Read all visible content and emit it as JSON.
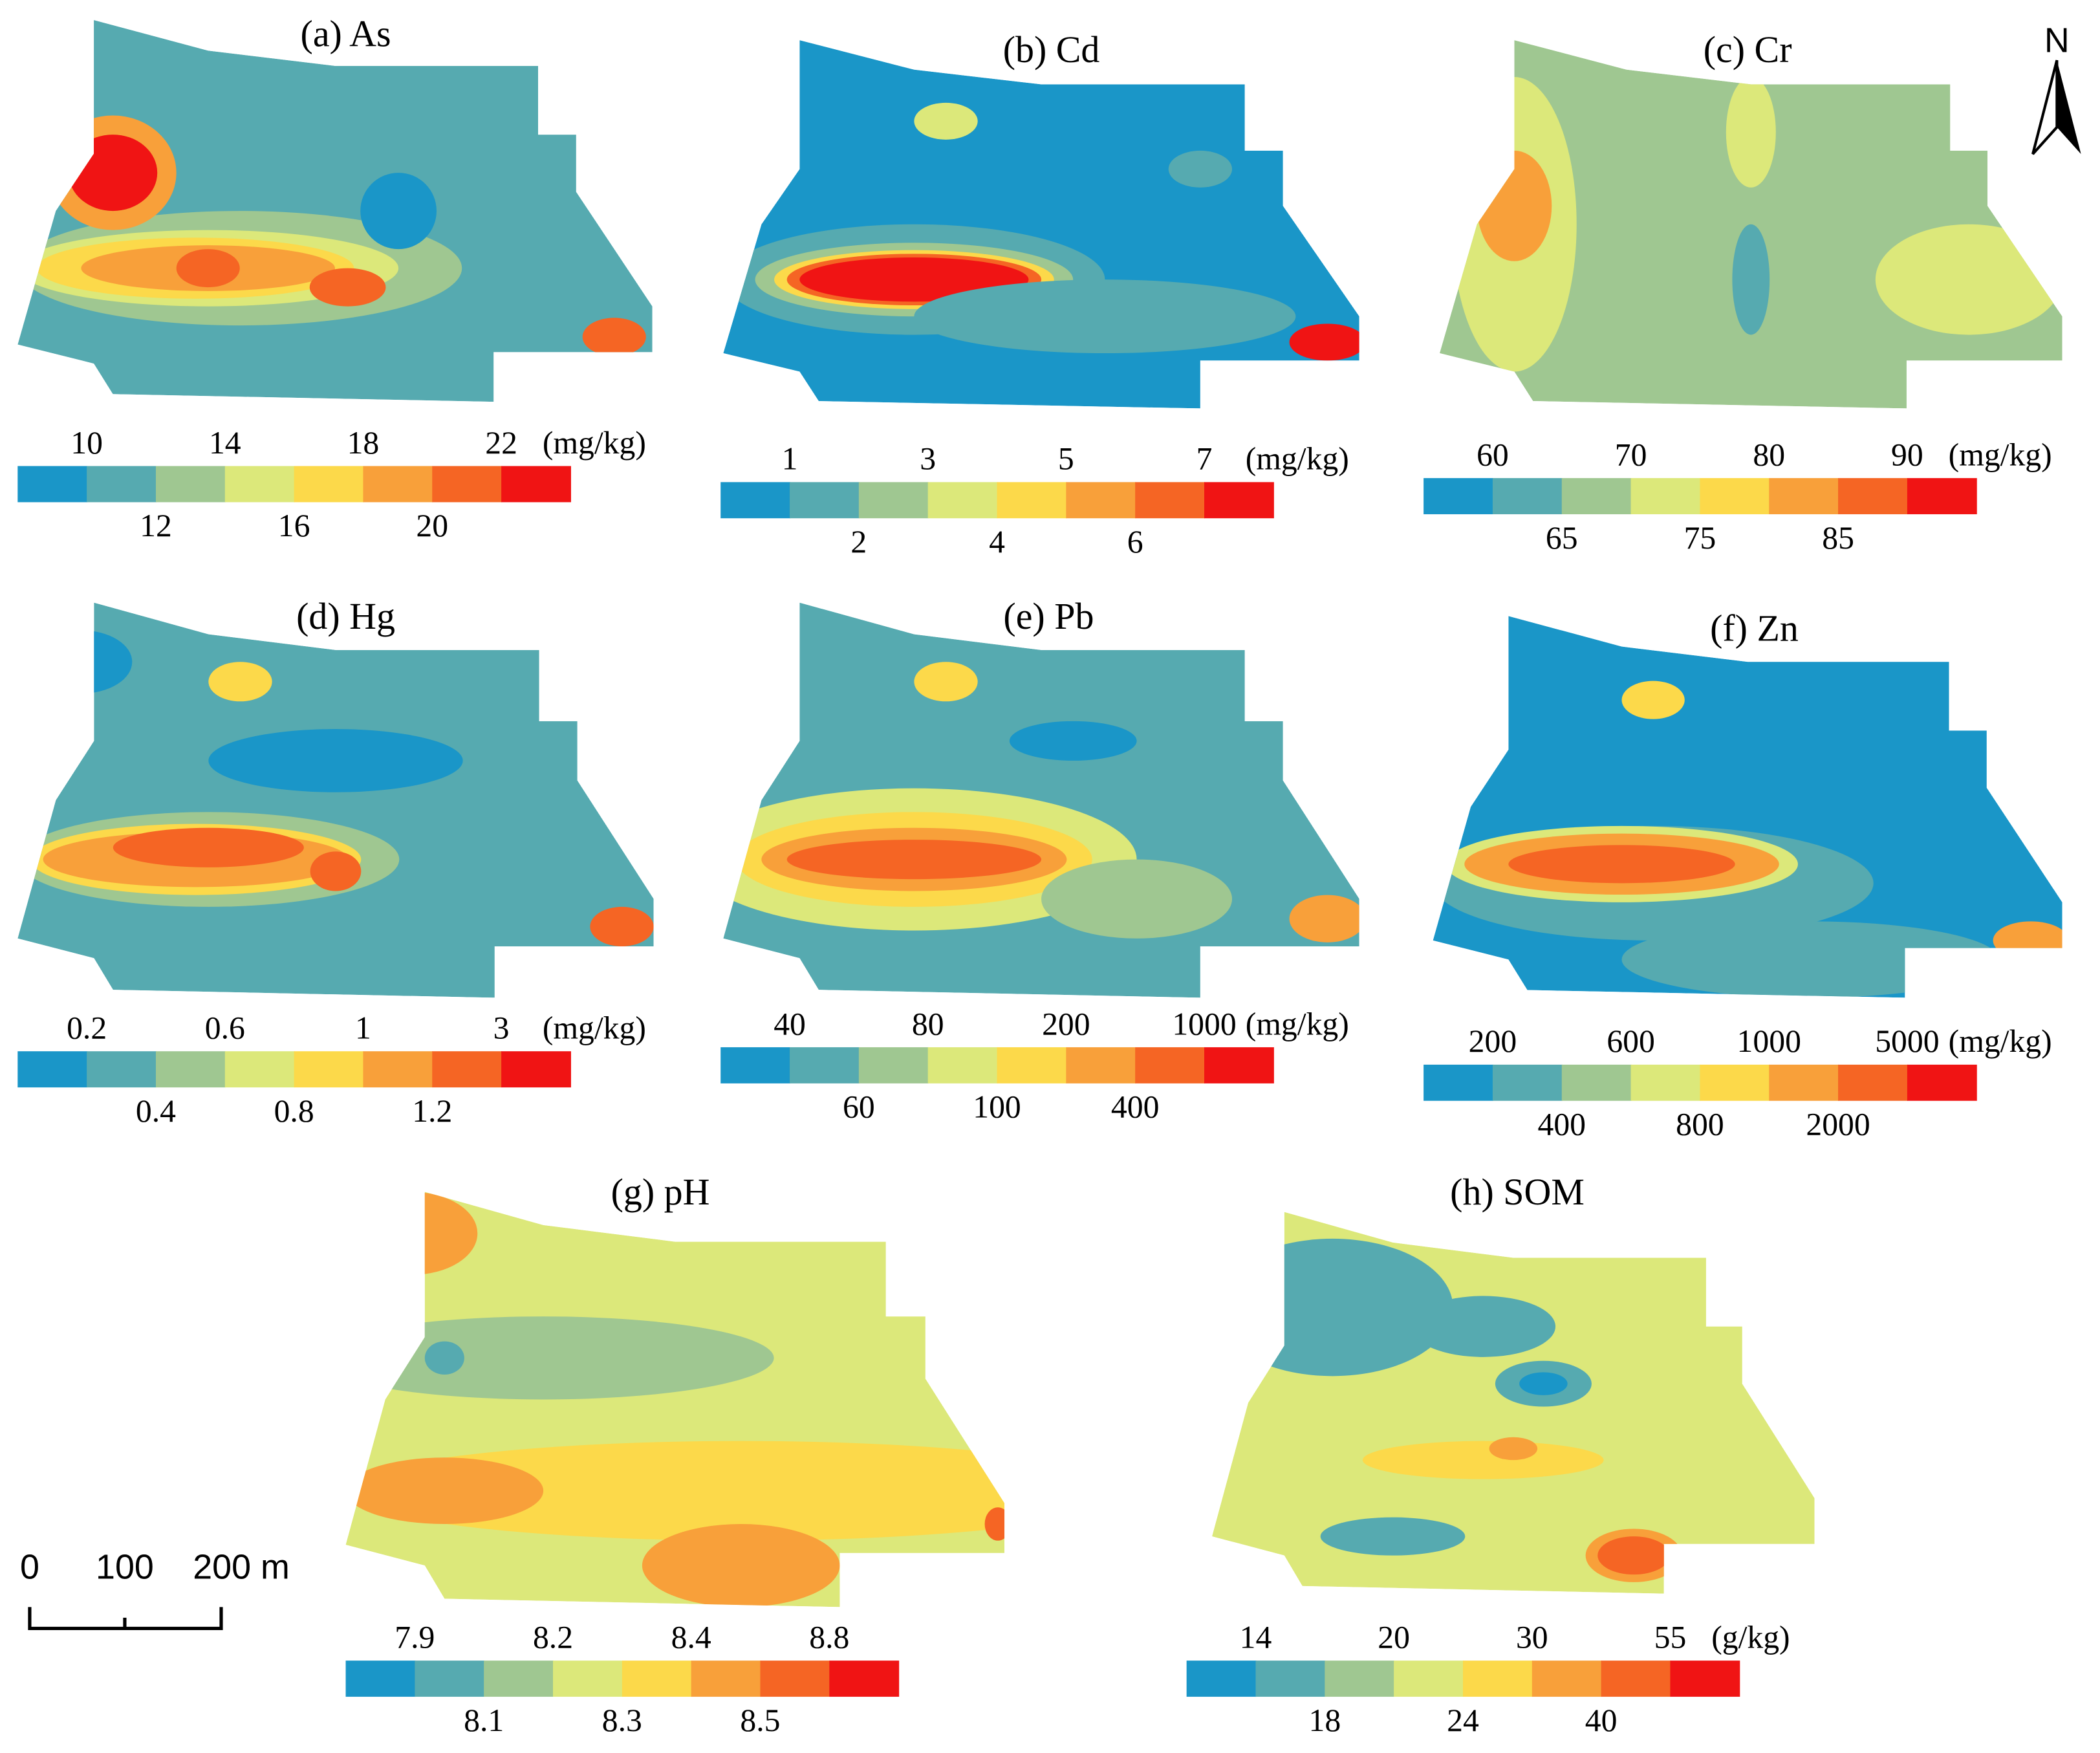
{
  "north": "N",
  "scale_bar": {
    "labels": [
      0,
      100,
      "200 m"
    ]
  },
  "legend_colors": [
    "#1a96c8",
    "#56aab0",
    "#9fc791",
    "#dce87a",
    "#fcd94a",
    "#f8a03a",
    "#f56524",
    "#f01414"
  ],
  "panels": [
    {
      "title": "(a) As",
      "unit": "(mg/kg)",
      "upper_labels": [
        10,
        14,
        18,
        22
      ],
      "lower_labels": [
        12,
        16,
        20
      ]
    },
    {
      "title": "(b) Cd",
      "unit": "(mg/kg)",
      "upper_labels": [
        1,
        3,
        5,
        7
      ],
      "lower_labels": [
        2,
        4,
        6
      ]
    },
    {
      "title": "(c) Cr",
      "unit": "(mg/kg)",
      "upper_labels": [
        60,
        70,
        80,
        90
      ],
      "lower_labels": [
        65,
        75,
        85
      ]
    },
    {
      "title": "(d) Hg",
      "unit": "(mg/kg)",
      "upper_labels": [
        0.2,
        0.6,
        1,
        3
      ],
      "lower_labels": [
        0.4,
        0.8,
        1.2
      ]
    },
    {
      "title": "(e) Pb",
      "unit": "(mg/kg)",
      "upper_labels": [
        40,
        80,
        200,
        1000
      ],
      "lower_labels": [
        60,
        100,
        400
      ]
    },
    {
      "title": "(f) Zn",
      "unit": "(mg/kg)",
      "upper_labels": [
        200,
        600,
        1000,
        5000
      ],
      "lower_labels": [
        400,
        800,
        2000
      ]
    },
    {
      "title": "(g) pH",
      "unit": "",
      "upper_labels": [
        7.9,
        8.2,
        8.4,
        8.8
      ],
      "lower_labels": [
        8.1,
        8.3,
        8.5
      ]
    },
    {
      "title": "(h) SOM",
      "unit": "(g/kg)",
      "upper_labels": [
        14,
        20,
        30,
        55
      ],
      "lower_labels": [
        18,
        24,
        40
      ]
    }
  ]
}
